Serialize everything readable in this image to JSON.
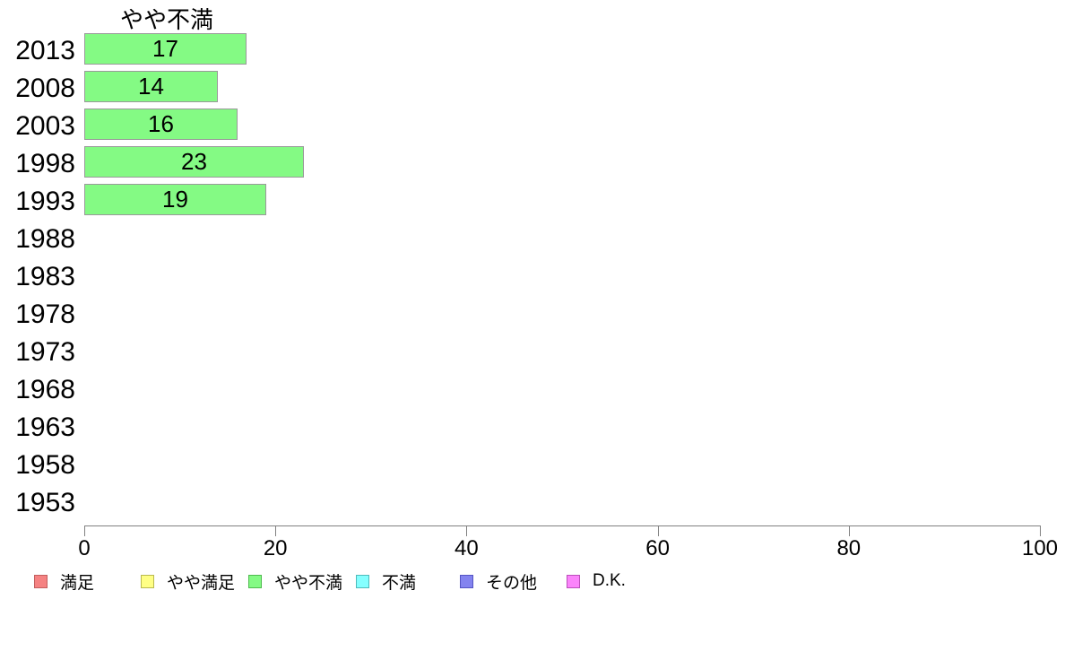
{
  "chart_data": {
    "type": "bar",
    "orientation": "horizontal",
    "title": "やや不満",
    "categories": [
      "2013",
      "2008",
      "2003",
      "1998",
      "1993",
      "1988",
      "1983",
      "1978",
      "1973",
      "1968",
      "1963",
      "1958",
      "1953"
    ],
    "values": [
      17,
      14,
      16,
      23,
      19,
      null,
      null,
      null,
      null,
      null,
      null,
      null,
      null
    ],
    "xlim": [
      0,
      100
    ],
    "x_ticks": [
      "0",
      "20",
      "40",
      "60",
      "80",
      "100"
    ],
    "grid": false,
    "legend_position": "bottom",
    "bar_fill": "#84fa84",
    "bar_border": "#999999",
    "axis_color": "#808080",
    "legend": [
      {
        "label": "満足",
        "fill": "#f58282",
        "border": "#c25e5e"
      },
      {
        "label": "やや満足",
        "fill": "#ffff85",
        "border": "#b9b94f"
      },
      {
        "label": "やや不満",
        "fill": "#84fa84",
        "border": "#4fba4f"
      },
      {
        "label": "不満",
        "fill": "#85ffff",
        "border": "#4fbaba"
      },
      {
        "label": "その他",
        "fill": "#8383ef",
        "border": "#5454c3"
      },
      {
        "label": "D.K.",
        "fill": "#fb84fb",
        "border": "#ba4fba"
      }
    ]
  }
}
